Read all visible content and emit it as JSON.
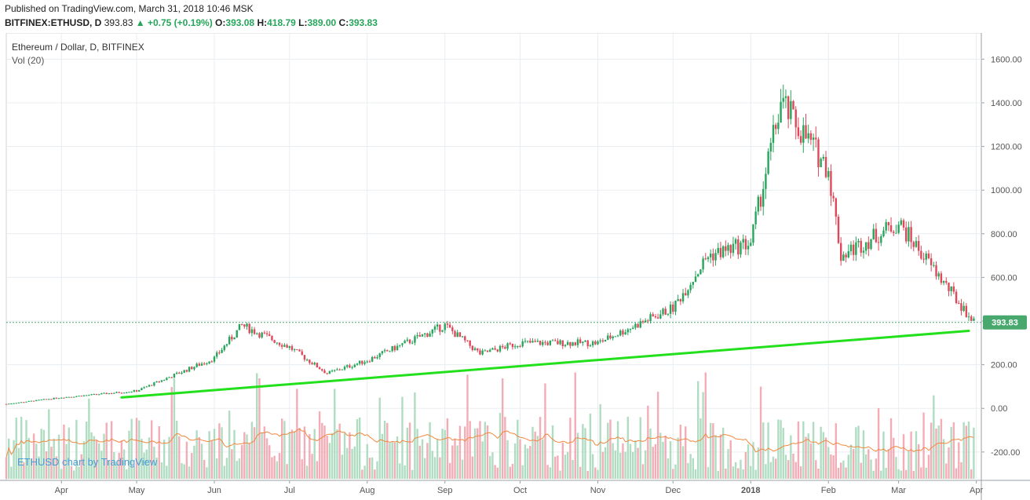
{
  "header": {
    "published": "Published on TradingView.com, March 31, 2018 10:46 MSK",
    "symbol": "BITFINEX:ETHUSD, D",
    "last": "393.83",
    "change_arrow": "▲",
    "change": "+0.75 (+0.19%)",
    "o_label": "O:",
    "o_value": "393.08",
    "h_label": "H:",
    "h_value": "418.79",
    "l_label": "L:",
    "l_value": "389.00",
    "c_label": "C:",
    "c_value": "393.83"
  },
  "legend": {
    "title": "Ethereum / Dollar, D, BITFINEX",
    "volume": "Vol (20)"
  },
  "watermark": "ETHUSD chart by TradingView",
  "colors": {
    "up": "#26a65b",
    "down": "#e0485a",
    "vol_up": "#a7d9bb",
    "vol_down": "#f2a4ae",
    "trendline": "#22e01b",
    "vol_ma": "#f0883e",
    "price_label_bg": "#48a86e",
    "grid": "#e9edf1"
  },
  "chart_data": {
    "type": "candlestick",
    "title": "Ethereum / Dollar, D, BITFINEX",
    "x_ticks": [
      "Apr",
      "May",
      "Jun",
      "Jul",
      "Aug",
      "Sep",
      "Oct",
      "Nov",
      "Dec",
      "2018",
      "Feb",
      "Mar",
      "Apr"
    ],
    "y_ticks": [
      "1600.00",
      "1400.00",
      "1200.00",
      "1000.00",
      "800.00",
      "600.00",
      "400.00",
      "200.00",
      "0.00",
      "-200.00"
    ],
    "ylim": [
      -330,
      1720
    ],
    "last_price": 393.83,
    "last_price_label": "393.83",
    "price_path_monthly": [
      {
        "date": "2017-03-10",
        "close": 20
      },
      {
        "date": "2017-04-01",
        "close": 50
      },
      {
        "date": "2017-05-01",
        "close": 80
      },
      {
        "date": "2017-06-01",
        "close": 230
      },
      {
        "date": "2017-06-12",
        "close": 380
      },
      {
        "date": "2017-07-01",
        "close": 280
      },
      {
        "date": "2017-07-16",
        "close": 160
      },
      {
        "date": "2017-08-01",
        "close": 220
      },
      {
        "date": "2017-09-01",
        "close": 380
      },
      {
        "date": "2017-09-15",
        "close": 250
      },
      {
        "date": "2017-10-01",
        "close": 300
      },
      {
        "date": "2017-11-01",
        "close": 300
      },
      {
        "date": "2017-12-01",
        "close": 460
      },
      {
        "date": "2017-12-15",
        "close": 700
      },
      {
        "date": "2018-01-01",
        "close": 760
      },
      {
        "date": "2018-01-13",
        "close": 1400
      },
      {
        "date": "2018-02-01",
        "close": 1100
      },
      {
        "date": "2018-02-06",
        "close": 700
      },
      {
        "date": "2018-03-01",
        "close": 850
      },
      {
        "date": "2018-03-31",
        "close": 393.83
      }
    ],
    "trendline": {
      "from": {
        "date": "2017-04-25",
        "price": 50
      },
      "to": {
        "date": "2018-03-29",
        "price": 355
      }
    },
    "volume_indicator": "Vol (20)"
  }
}
